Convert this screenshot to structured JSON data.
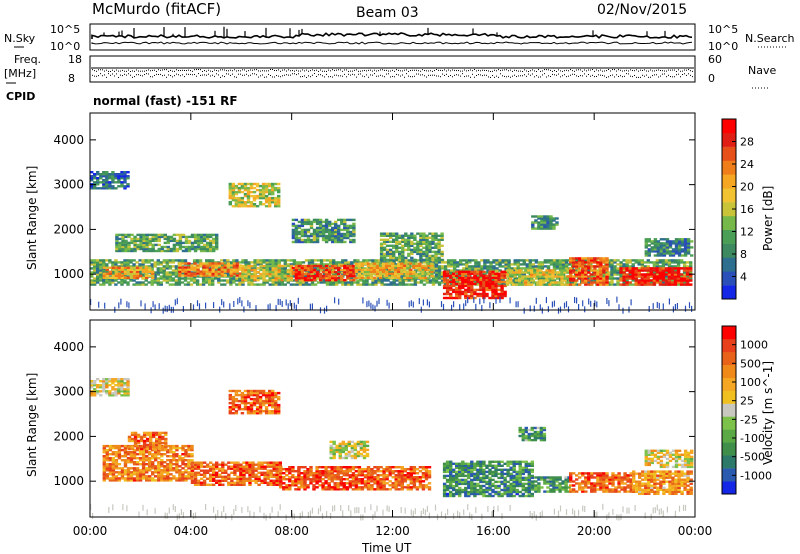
{
  "header": {
    "title": "McMurdo (fitACF)",
    "beam": "Beam 03",
    "date": "02/Nov/2015"
  },
  "status_panels": {
    "nsky_label": "N.Sky",
    "nsearch_label": "N.Search",
    "noise_left_ticks": [
      "10^5",
      "10^0"
    ],
    "noise_right_ticks": [
      "10^5",
      "10^0"
    ],
    "freq_label_top": "Freq.",
    "freq_label_unit": "[MHz]",
    "freq_ticks": [
      "18",
      "8"
    ],
    "nave_ticks": [
      "60",
      "0"
    ],
    "nave_label": "Nave",
    "cpid_label": "CPID",
    "cpid_text": "normal (fast) -151 RF"
  },
  "chart_data": [
    {
      "type": "heatmap",
      "name_hint": "power",
      "ylabel": "Slant Range [km]",
      "xlabel": "Time UT",
      "x_ticks": [
        "00:00",
        "04:00",
        "08:00",
        "12:00",
        "16:00",
        "20:00",
        "00:00"
      ],
      "x_range_hours": [
        0,
        24
      ],
      "y_ticks": [
        1000,
        2000,
        3000,
        4000
      ],
      "ylim": [
        200,
        4600
      ],
      "colorbar": {
        "label": "Power [dB]",
        "ticks": [
          "28",
          "24",
          "20",
          "16",
          "12",
          "8",
          "4"
        ],
        "colors": [
          "#1426e6",
          "#2a4fb8",
          "#2e6f8f",
          "#3d8a60",
          "#4a9e55",
          "#76b84a",
          "#c9c33a",
          "#f1c232",
          "#f5a623",
          "#ef7d1a",
          "#e8501a",
          "#e01e14",
          "#ff0000"
        ]
      },
      "regions": [
        {
          "t0": 0.0,
          "t1": 24.0,
          "r0": 750,
          "r1": 1300,
          "level": 0.35
        },
        {
          "t0": 0.5,
          "t1": 2.5,
          "r0": 900,
          "r1": 1150,
          "level": 0.65
        },
        {
          "t0": 3.5,
          "t1": 6.0,
          "r0": 950,
          "r1": 1250,
          "level": 0.7
        },
        {
          "t0": 6.0,
          "t1": 8.0,
          "r0": 850,
          "r1": 1200,
          "level": 0.55
        },
        {
          "t0": 8.0,
          "t1": 10.5,
          "r0": 850,
          "r1": 1200,
          "level": 0.85
        },
        {
          "t0": 10.5,
          "t1": 13.5,
          "r0": 900,
          "r1": 1250,
          "level": 0.6
        },
        {
          "t0": 14.0,
          "t1": 16.5,
          "r0": 450,
          "r1": 1050,
          "level": 0.9
        },
        {
          "t0": 16.5,
          "t1": 19.0,
          "r0": 750,
          "r1": 1100,
          "level": 0.55
        },
        {
          "t0": 19.0,
          "t1": 20.5,
          "r0": 750,
          "r1": 1350,
          "level": 0.8
        },
        {
          "t0": 21.0,
          "t1": 24.0,
          "r0": 750,
          "r1": 1150,
          "level": 0.9
        },
        {
          "t0": 1.0,
          "t1": 5.0,
          "r0": 1500,
          "r1": 1900,
          "level": 0.35
        },
        {
          "t0": 5.5,
          "t1": 7.5,
          "r0": 2500,
          "r1": 3000,
          "level": 0.5
        },
        {
          "t0": 8.0,
          "t1": 10.5,
          "r0": 1700,
          "r1": 2200,
          "level": 0.3
        },
        {
          "t0": 11.5,
          "t1": 14.0,
          "r0": 1300,
          "r1": 1900,
          "level": 0.35
        },
        {
          "t0": 0.0,
          "t1": 1.5,
          "r0": 2900,
          "r1": 3300,
          "level": 0.2
        },
        {
          "t0": 17.5,
          "t1": 18.5,
          "r0": 2000,
          "r1": 2300,
          "level": 0.3
        },
        {
          "t0": 22.0,
          "t1": 24.0,
          "r0": 1400,
          "r1": 1800,
          "level": 0.25
        }
      ]
    },
    {
      "type": "heatmap",
      "name_hint": "velocity",
      "ylabel": "Slant Range [km]",
      "xlabel": "Time UT",
      "x_ticks": [
        "00:00",
        "04:00",
        "08:00",
        "12:00",
        "16:00",
        "20:00",
        "00:00"
      ],
      "x_range_hours": [
        0,
        24
      ],
      "y_ticks": [
        1000,
        2000,
        3000,
        4000
      ],
      "ylim": [
        200,
        4600
      ],
      "colorbar": {
        "label": "Velocity [m s^-1]",
        "ticks": [
          "1000",
          "500",
          "100",
          "25",
          "-25",
          "-100",
          "-500",
          "-1000"
        ],
        "colors": [
          "#1426e6",
          "#2a5ab0",
          "#2e7a6a",
          "#3f8f4a",
          "#5aa846",
          "#7cc24a",
          "#c8c8c0",
          "#f0c020",
          "#f5a623",
          "#ef8a1a",
          "#e8621a",
          "#e8401a",
          "#ff0000"
        ]
      },
      "regions": [
        {
          "t0": 0.5,
          "t1": 4.0,
          "r0": 1000,
          "r1": 1800,
          "level": 0.75
        },
        {
          "t0": 4.0,
          "t1": 7.5,
          "r0": 900,
          "r1": 1400,
          "level": 0.8
        },
        {
          "t0": 7.5,
          "t1": 11.0,
          "r0": 800,
          "r1": 1300,
          "level": 0.85
        },
        {
          "t0": 11.0,
          "t1": 13.5,
          "r0": 800,
          "r1": 1300,
          "level": 0.8
        },
        {
          "t0": 14.0,
          "t1": 17.5,
          "r0": 650,
          "r1": 1450,
          "level": 0.25
        },
        {
          "t0": 17.5,
          "t1": 19.0,
          "r0": 750,
          "r1": 1100,
          "level": 0.3
        },
        {
          "t0": 19.0,
          "t1": 21.5,
          "r0": 750,
          "r1": 1200,
          "level": 0.8
        },
        {
          "t0": 21.5,
          "t1": 24.0,
          "r0": 700,
          "r1": 1200,
          "level": 0.7
        },
        {
          "t0": 0.0,
          "t1": 1.5,
          "r0": 2900,
          "r1": 3300,
          "level": 0.55
        },
        {
          "t0": 5.5,
          "t1": 7.5,
          "r0": 2500,
          "r1": 3000,
          "level": 0.8
        },
        {
          "t0": 1.5,
          "t1": 3.0,
          "r0": 1700,
          "r1": 2100,
          "level": 0.78
        },
        {
          "t0": 17.0,
          "t1": 18.0,
          "r0": 1900,
          "r1": 2200,
          "level": 0.3
        },
        {
          "t0": 22.0,
          "t1": 24.0,
          "r0": 1300,
          "r1": 1700,
          "level": 0.55
        },
        {
          "t0": 9.5,
          "t1": 11.0,
          "r0": 1500,
          "r1": 1900,
          "level": 0.5
        }
      ]
    }
  ]
}
